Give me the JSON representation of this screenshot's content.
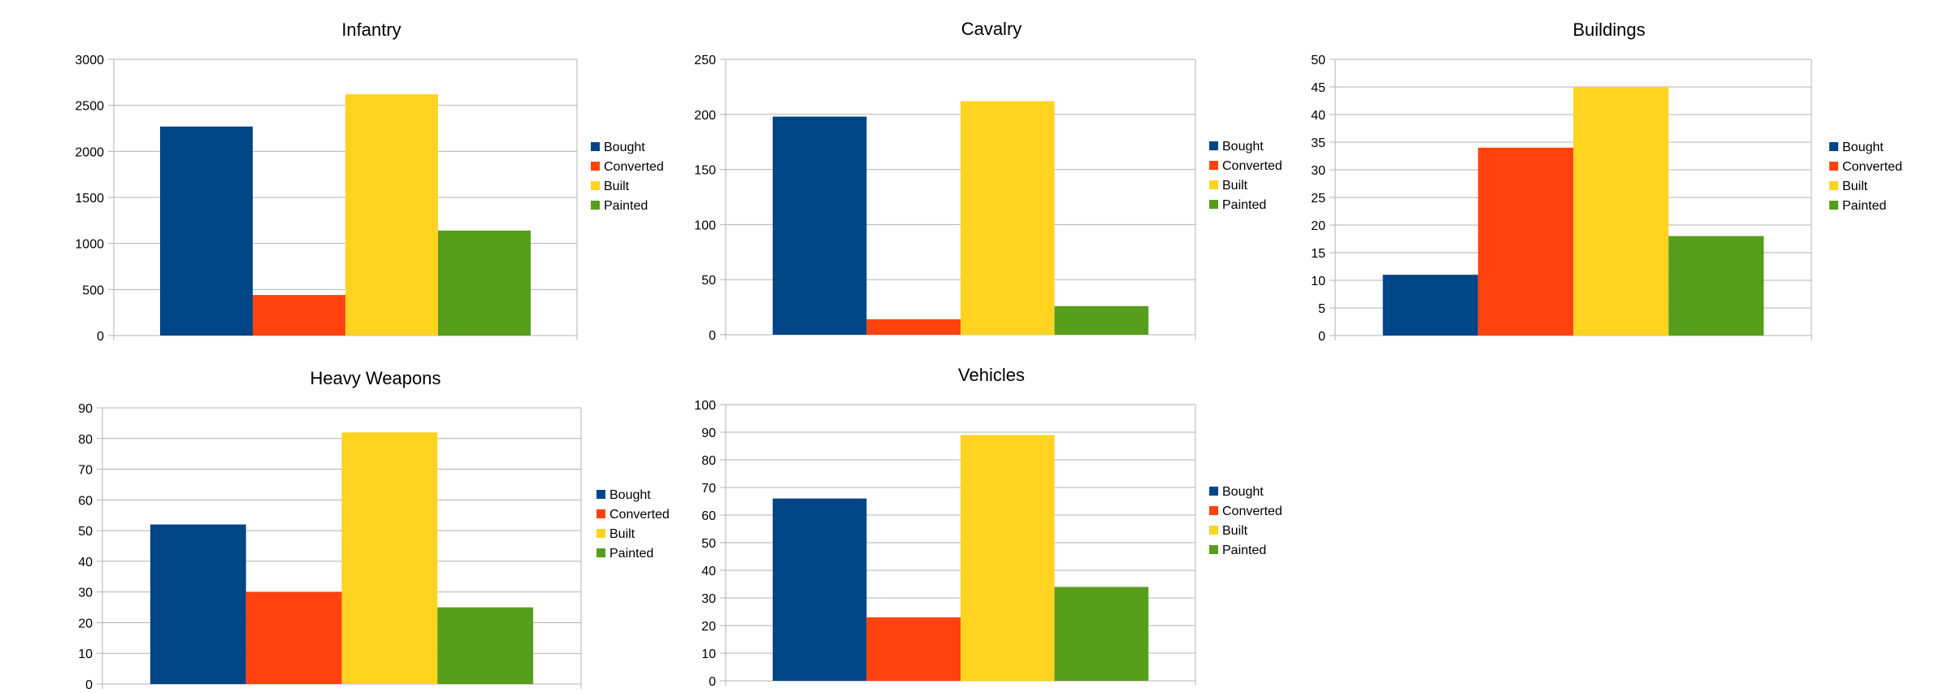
{
  "chart_data": [
    {
      "type": "bar",
      "title": "Infantry",
      "categories": [
        ""
      ],
      "series": [
        {
          "name": "Bought",
          "values": [
            2270
          ]
        },
        {
          "name": "Converted",
          "values": [
            440
          ]
        },
        {
          "name": "Built",
          "values": [
            2620
          ]
        },
        {
          "name": "Painted",
          "values": [
            1140
          ]
        }
      ],
      "ylim": [
        0,
        3000
      ],
      "yticks": [
        0,
        500,
        1000,
        1500,
        2000,
        2500,
        3000
      ],
      "xlabel": "",
      "ylabel": "",
      "grid": true,
      "legend": "right"
    },
    {
      "type": "bar",
      "title": "Cavalry",
      "categories": [
        ""
      ],
      "series": [
        {
          "name": "Bought",
          "values": [
            198
          ]
        },
        {
          "name": "Converted",
          "values": [
            14
          ]
        },
        {
          "name": "Built",
          "values": [
            212
          ]
        },
        {
          "name": "Painted",
          "values": [
            26
          ]
        }
      ],
      "ylim": [
        0,
        250
      ],
      "yticks": [
        0,
        50,
        100,
        150,
        200,
        250
      ],
      "xlabel": "",
      "ylabel": "",
      "grid": true,
      "legend": "right"
    },
    {
      "type": "bar",
      "title": "Buildings",
      "categories": [
        ""
      ],
      "series": [
        {
          "name": "Bought",
          "values": [
            11
          ]
        },
        {
          "name": "Converted",
          "values": [
            34
          ]
        },
        {
          "name": "Built",
          "values": [
            45
          ]
        },
        {
          "name": "Painted",
          "values": [
            18
          ]
        }
      ],
      "ylim": [
        0,
        50
      ],
      "yticks": [
        0,
        5,
        10,
        15,
        20,
        25,
        30,
        35,
        40,
        45,
        50
      ],
      "xlabel": "",
      "ylabel": "",
      "grid": true,
      "legend": "right"
    },
    {
      "type": "bar",
      "title": "Heavy Weapons",
      "categories": [
        ""
      ],
      "series": [
        {
          "name": "Bought",
          "values": [
            52
          ]
        },
        {
          "name": "Converted",
          "values": [
            30
          ]
        },
        {
          "name": "Built",
          "values": [
            82
          ]
        },
        {
          "name": "Painted",
          "values": [
            25
          ]
        }
      ],
      "ylim": [
        0,
        90
      ],
      "yticks": [
        0,
        10,
        20,
        30,
        40,
        50,
        60,
        70,
        80,
        90
      ],
      "xlabel": "",
      "ylabel": "",
      "grid": true,
      "legend": "right"
    },
    {
      "type": "bar",
      "title": "Vehicles",
      "categories": [
        ""
      ],
      "series": [
        {
          "name": "Bought",
          "values": [
            66
          ]
        },
        {
          "name": "Converted",
          "values": [
            23
          ]
        },
        {
          "name": "Built",
          "values": [
            89
          ]
        },
        {
          "name": "Painted",
          "values": [
            34
          ]
        }
      ],
      "ylim": [
        0,
        100
      ],
      "yticks": [
        0,
        10,
        20,
        30,
        40,
        50,
        60,
        70,
        80,
        90,
        100
      ],
      "xlabel": "",
      "ylabel": "",
      "grid": true,
      "legend": "right"
    }
  ],
  "colors": {
    "Bought": "#004586",
    "Converted": "#ff420e",
    "Built": "#ffd320",
    "Painted": "#579d1c",
    "gridline": "#b3b3b3",
    "axis": "#b3b3b3"
  }
}
